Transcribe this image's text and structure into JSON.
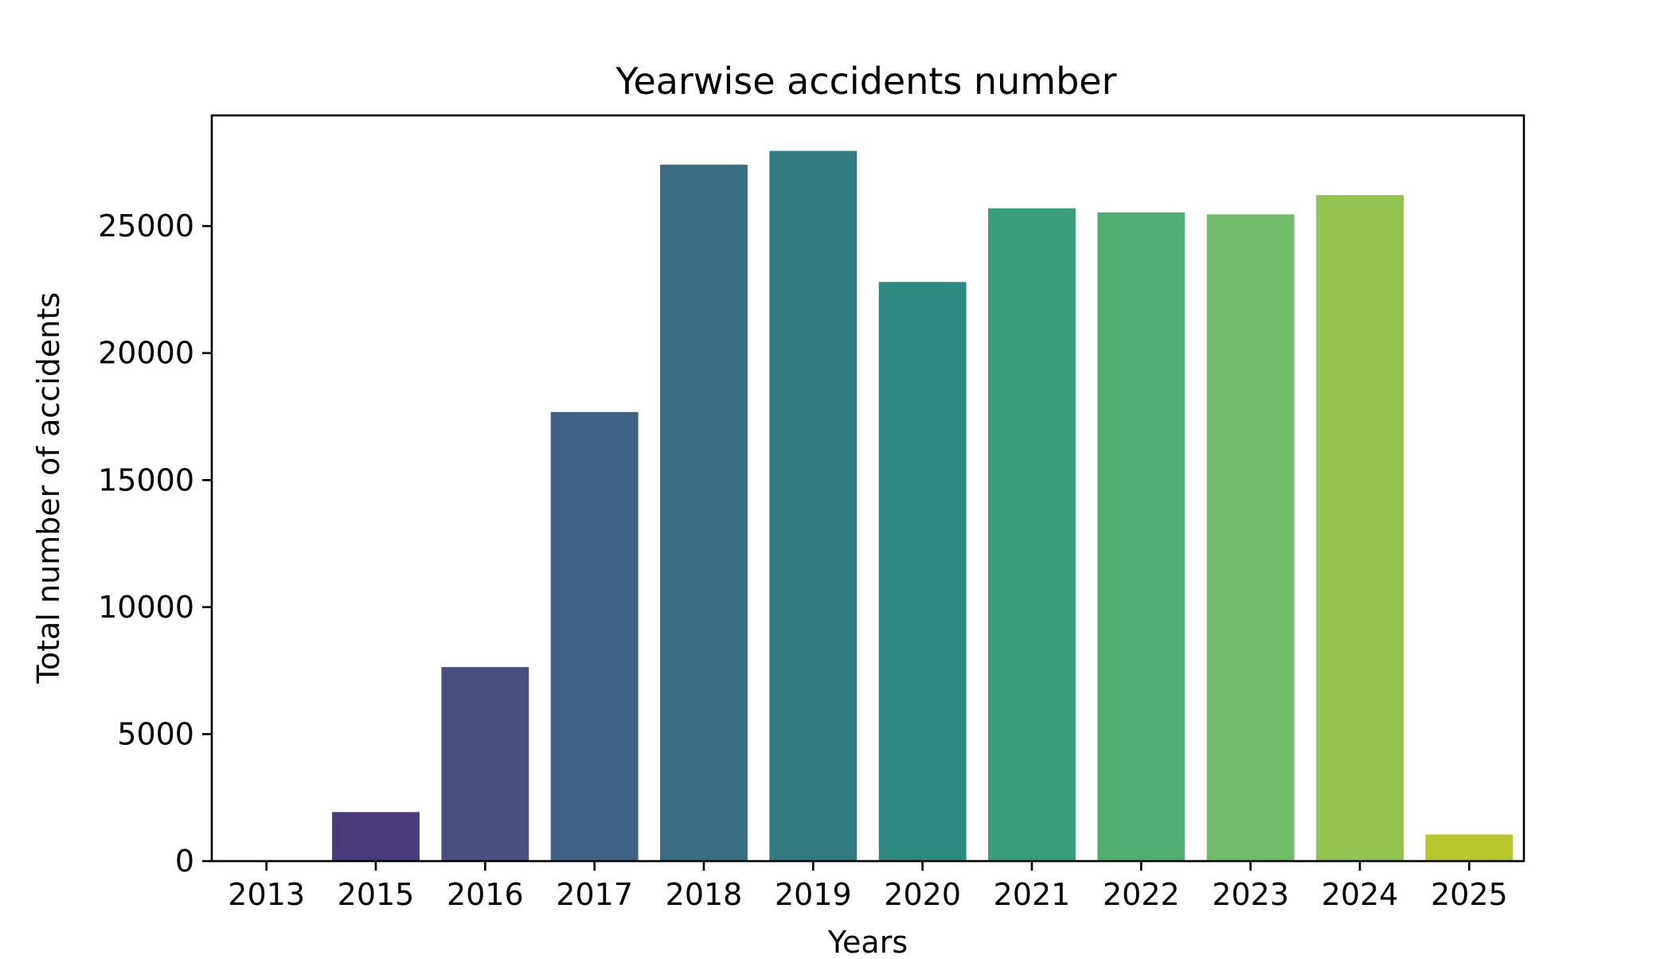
{
  "chart_data": {
    "type": "bar",
    "title": "Yearwise accidents number",
    "xlabel": "Years",
    "ylabel": "Total number of accidents",
    "categories": [
      "2013",
      "2015",
      "2016",
      "2017",
      "2018",
      "2019",
      "2020",
      "2021",
      "2022",
      "2023",
      "2024",
      "2025"
    ],
    "values": [
      2,
      1930,
      7640,
      17680,
      27420,
      27960,
      22800,
      25700,
      25540,
      25460,
      26220,
      1050
    ],
    "colors": [
      "#440154",
      "#4b3b7a",
      "#47507e",
      "#3f6182",
      "#376f80",
      "#317a80",
      "#2d8a7e",
      "#389e7b",
      "#50ae72",
      "#71bc68",
      "#94c352",
      "#bac830"
    ],
    "yticks": [
      0,
      5000,
      10000,
      15000,
      20000,
      25000
    ],
    "ylim": [
      0,
      29358
    ],
    "grid": false,
    "legend": false
  }
}
